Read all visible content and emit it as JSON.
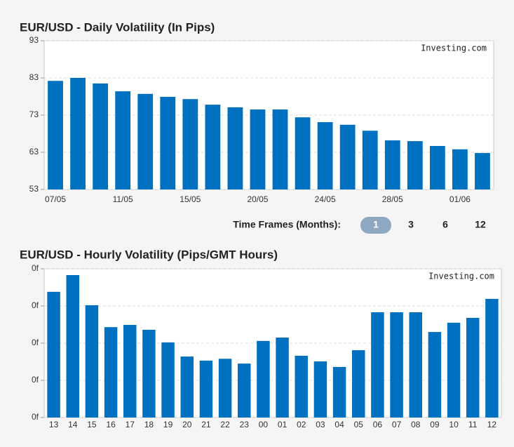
{
  "chart_data": [
    {
      "type": "bar",
      "title": "EUR/USD - Daily Volatility (In Pips)",
      "watermark": "Investing.com",
      "categories": [
        "07/05",
        null,
        null,
        "11/05",
        null,
        null,
        "15/05",
        null,
        null,
        "20/05",
        null,
        null,
        "24/05",
        null,
        null,
        "28/05",
        null,
        null,
        "01/06",
        null
      ],
      "values": [
        82.2,
        83,
        81.5,
        79.4,
        78.7,
        77.9,
        77.3,
        75.8,
        75.1,
        74.5,
        74.5,
        72.4,
        71.1,
        70.4,
        68.8,
        66.2,
        66.0,
        64.7,
        63.8,
        62.8
      ],
      "color": "#0070c0",
      "ylim": [
        53,
        93
      ],
      "yticks": [
        53,
        63,
        73,
        83,
        93
      ],
      "grid": true
    },
    {
      "type": "bar",
      "title": "EUR/USD - Hourly Volatility (Pips/GMT Hours)",
      "watermark": "Investing.com",
      "categories": [
        "13",
        "14",
        "15",
        "16",
        "17",
        "18",
        "19",
        "20",
        "21",
        "22",
        "23",
        "00",
        "01",
        "02",
        "03",
        "04",
        "05",
        "06",
        "07",
        "08",
        "09",
        "10",
        "11",
        "12"
      ],
      "values": [
        3.38,
        3.83,
        3.02,
        2.43,
        2.49,
        2.36,
        2.02,
        1.64,
        1.53,
        1.58,
        1.45,
        2.06,
        2.15,
        1.66,
        1.51,
        1.36,
        1.81,
        2.83,
        2.83,
        2.83,
        2.3,
        2.55,
        2.68,
        3.19
      ],
      "color": "#0070c0",
      "ylim": [
        0,
        4
      ],
      "yticks": [
        {
          "value": 0,
          "label": "0f"
        },
        {
          "value": 1,
          "label": "0f"
        },
        {
          "value": 2,
          "label": "0f"
        },
        {
          "value": 3,
          "label": "0f"
        },
        {
          "value": 4,
          "label": "0f"
        }
      ],
      "grid": true
    }
  ],
  "time_frames": {
    "label": "Time Frames (Months):",
    "options": [
      "1",
      "3",
      "6",
      "12"
    ],
    "selected": 0
  }
}
